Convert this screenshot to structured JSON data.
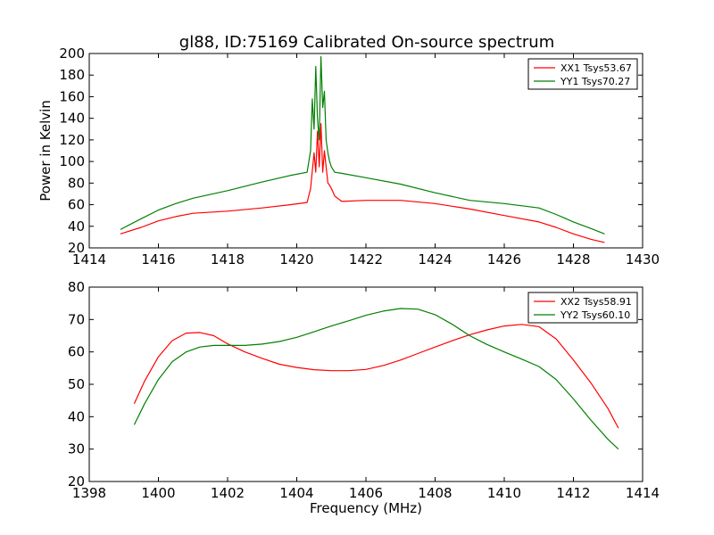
{
  "title": "gl88, ID:75169 Calibrated On-source spectrum",
  "colors": {
    "xx": "#ff0000",
    "yy": "#008000"
  },
  "chart_data": [
    {
      "type": "line",
      "xlabel": "",
      "ylabel": "Power in Kelvin",
      "xlim": [
        1414,
        1430
      ],
      "ylim": [
        20,
        200
      ],
      "xticks": [
        1414,
        1416,
        1418,
        1420,
        1422,
        1424,
        1426,
        1428,
        1430
      ],
      "yticks": [
        20,
        40,
        60,
        80,
        100,
        120,
        140,
        160,
        180,
        200
      ],
      "legend": "top-right",
      "grid": false,
      "series": [
        {
          "name": "XX1 Tsys53.67",
          "color": "#ff0000",
          "x": [
            1414.9,
            1415.5,
            1416.0,
            1416.5,
            1417.0,
            1418.0,
            1419.0,
            1419.8,
            1420.3,
            1420.4,
            1420.5,
            1420.55,
            1420.6,
            1420.65,
            1420.7,
            1420.75,
            1420.8,
            1420.85,
            1420.9,
            1420.95,
            1421.0,
            1421.1,
            1421.3,
            1422.0,
            1423.0,
            1424.0,
            1425.0,
            1426.0,
            1427.0,
            1427.5,
            1428.0,
            1428.5,
            1428.9
          ],
          "y": [
            33,
            39,
            45,
            49,
            52,
            54,
            57,
            60,
            62,
            75,
            108,
            90,
            128,
            95,
            135,
            90,
            110,
            95,
            80,
            78,
            75,
            68,
            63,
            64,
            64,
            61,
            56,
            50,
            44,
            39,
            33,
            28,
            25
          ]
        },
        {
          "name": "YY1 Tsys70.27",
          "color": "#008000",
          "x": [
            1414.9,
            1415.5,
            1416.0,
            1416.5,
            1417.0,
            1418.0,
            1419.0,
            1419.8,
            1420.3,
            1420.4,
            1420.45,
            1420.5,
            1420.55,
            1420.6,
            1420.65,
            1420.7,
            1420.75,
            1420.8,
            1420.85,
            1420.9,
            1420.95,
            1421.0,
            1421.1,
            1421.3,
            1422.0,
            1423.0,
            1424.0,
            1425.0,
            1426.0,
            1427.0,
            1427.5,
            1428.0,
            1428.5,
            1428.9
          ],
          "y": [
            37,
            47,
            55,
            61,
            66,
            73,
            81,
            87,
            90,
            110,
            158,
            130,
            188,
            140,
            120,
            197,
            150,
            165,
            120,
            108,
            100,
            95,
            90,
            89,
            85,
            79,
            71,
            64,
            61,
            57,
            51,
            44,
            38,
            33
          ]
        }
      ]
    },
    {
      "type": "line",
      "xlabel": "Frequency (MHz)",
      "ylabel": "",
      "xlim": [
        1398,
        1414
      ],
      "ylim": [
        20,
        80
      ],
      "xticks": [
        1398,
        1400,
        1402,
        1404,
        1406,
        1408,
        1410,
        1412,
        1414
      ],
      "yticks": [
        20,
        30,
        40,
        50,
        60,
        70,
        80
      ],
      "legend": "top-right",
      "grid": false,
      "series": [
        {
          "name": "XX2 Tsys58.91",
          "color": "#ff0000",
          "x": [
            1399.3,
            1399.6,
            1400.0,
            1400.4,
            1400.8,
            1401.2,
            1401.6,
            1402.0,
            1402.5,
            1403.0,
            1403.5,
            1404.0,
            1404.5,
            1405.0,
            1405.5,
            1406.0,
            1406.5,
            1407.0,
            1407.5,
            1408.0,
            1408.5,
            1409.0,
            1409.5,
            1410.0,
            1410.5,
            1411.0,
            1411.5,
            1412.0,
            1412.5,
            1413.0,
            1413.3
          ],
          "y": [
            44,
            51,
            58.5,
            63.5,
            65.8,
            66,
            65,
            62.5,
            60,
            58,
            56.2,
            55.2,
            54.5,
            54.2,
            54.2,
            54.6,
            55.8,
            57.5,
            59.5,
            61.5,
            63.5,
            65.3,
            66.8,
            68,
            68.5,
            67.8,
            64,
            57.5,
            50.5,
            42.5,
            36.5
          ]
        },
        {
          "name": "YY2 Tsys60.10",
          "color": "#008000",
          "x": [
            1399.3,
            1399.6,
            1400.0,
            1400.4,
            1400.8,
            1401.2,
            1401.6,
            1402.0,
            1402.5,
            1403.0,
            1403.5,
            1404.0,
            1404.5,
            1405.0,
            1405.5,
            1406.0,
            1406.5,
            1407.0,
            1407.5,
            1408.0,
            1408.5,
            1409.0,
            1409.5,
            1410.0,
            1410.5,
            1411.0,
            1411.5,
            1412.0,
            1412.5,
            1413.0,
            1413.3
          ],
          "y": [
            37.5,
            44,
            51.5,
            57,
            60,
            61.5,
            62,
            62,
            62,
            62.4,
            63.2,
            64.5,
            66.2,
            68,
            69.6,
            71.3,
            72.6,
            73.4,
            73.2,
            71.5,
            68.5,
            65,
            62.3,
            60,
            57.8,
            55.5,
            51.5,
            45.5,
            39,
            33,
            30
          ]
        }
      ]
    }
  ]
}
